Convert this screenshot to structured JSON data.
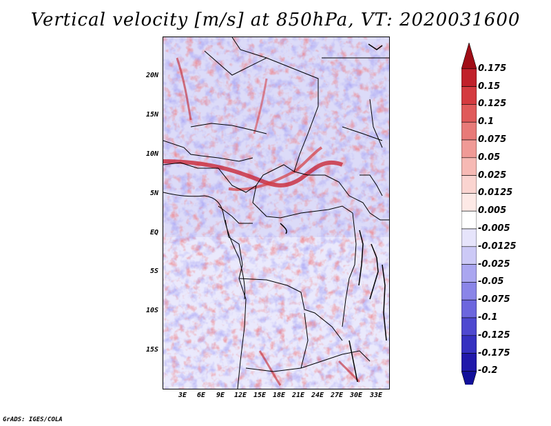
{
  "title": "Vertical velocity [m/s] at 850hPa, VT: 2020031600",
  "footer": "GrADS: IGES/COLA",
  "map": {
    "lat_labels": [
      "20N",
      "15N",
      "10N",
      "5N",
      "EQ",
      "5S",
      "10S",
      "15S"
    ],
    "lon_labels": [
      "3E",
      "6E",
      "9E",
      "12E",
      "15E",
      "18E",
      "21E",
      "24E",
      "27E",
      "30E",
      "33E"
    ]
  },
  "colorbar": {
    "labels": [
      "0.175",
      "0.15",
      "0.125",
      "0.1",
      "0.075",
      "0.05",
      "0.025",
      "0.0125",
      "0.005",
      "-0.005",
      "-0.0125",
      "-0.025",
      "-0.05",
      "-0.075",
      "-0.1",
      "-0.125",
      "-0.175",
      "-0.2"
    ],
    "colors": [
      "#a00d16",
      "#c0202a",
      "#d43a3f",
      "#e05a5a",
      "#e87a78",
      "#f09a96",
      "#f6b9b4",
      "#fad4d0",
      "#fde9e6",
      "#ffffff",
      "#e6e4fb",
      "#ccc9f6",
      "#aaa6f0",
      "#8a85e8",
      "#6c66de",
      "#4e48d0",
      "#3530c0",
      "#2018aa",
      "#12109a"
    ]
  }
}
